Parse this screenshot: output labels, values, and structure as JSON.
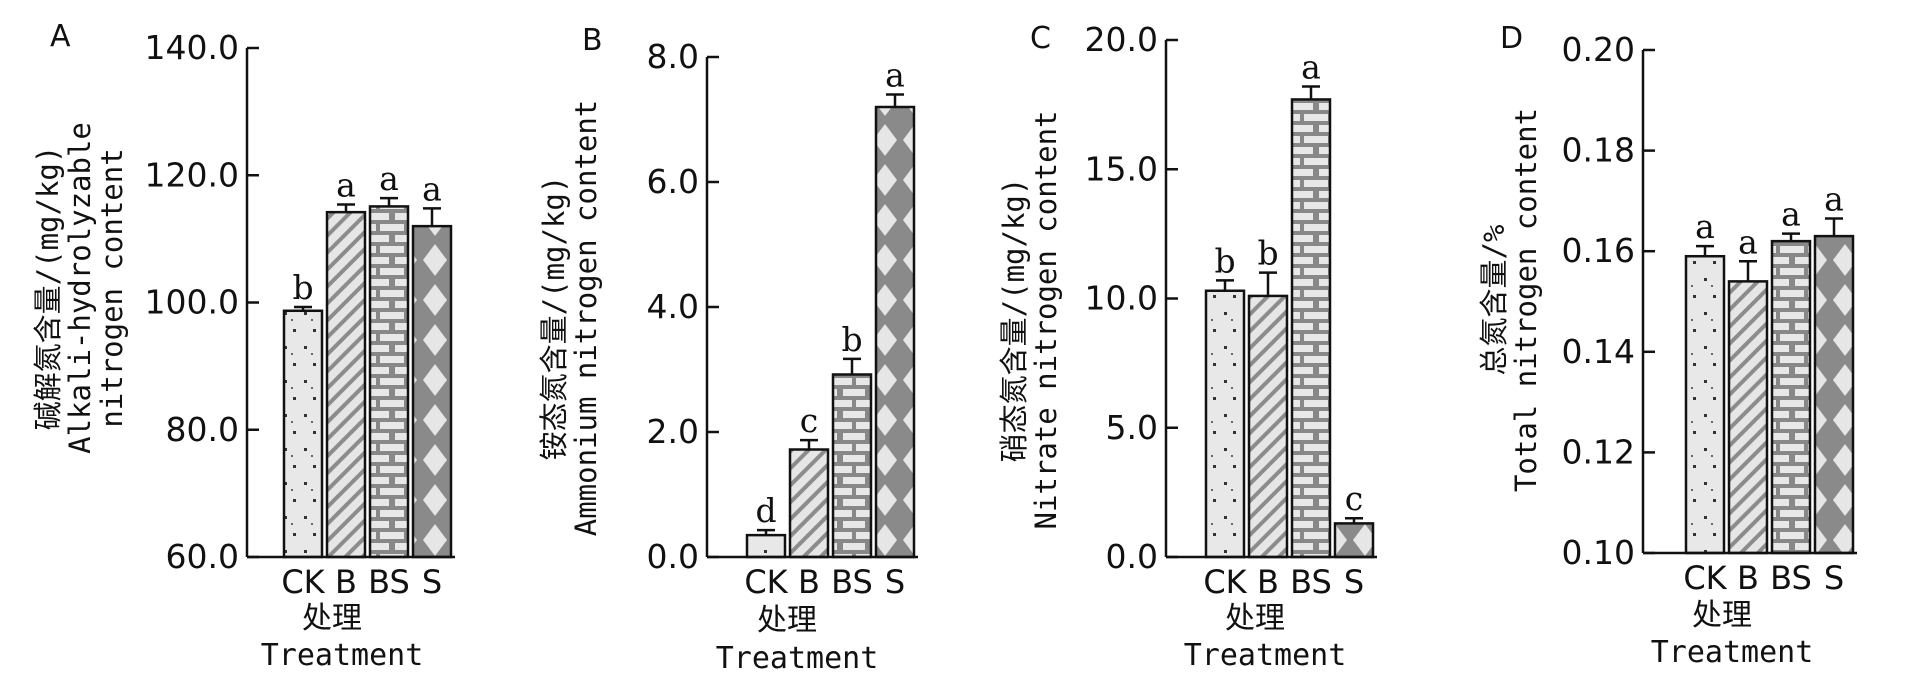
{
  "chart_data": [
    {
      "panel": "A",
      "type": "bar",
      "categories": [
        "CK",
        "B",
        "BS",
        "S"
      ],
      "values": [
        98.7,
        114.2,
        115.1,
        112.0
      ],
      "errors": [
        0.6,
        1.2,
        1.3,
        2.8
      ],
      "letters": [
        "b",
        "a",
        "a",
        "a"
      ],
      "ylim": [
        60.0,
        140.0
      ],
      "yticks": [
        "60.0",
        "80.0",
        "100.0",
        "120.0",
        "140.0"
      ],
      "ytick_values": [
        60,
        80,
        100,
        120,
        140
      ],
      "ylabel_lines": [
        "碱解氮含量/(mg/kg)",
        "Alkali-hydrolyzable",
        "nitrogen content"
      ],
      "xlabel_lines": [
        "处理",
        "Treatment"
      ]
    },
    {
      "panel": "B",
      "type": "bar",
      "categories": [
        "CK",
        "B",
        "BS",
        "S"
      ],
      "values": [
        0.35,
        1.72,
        2.92,
        7.2
      ],
      "errors": [
        0.08,
        0.15,
        0.25,
        0.2
      ],
      "letters": [
        "d",
        "c",
        "b",
        "a"
      ],
      "ylim": [
        0.0,
        8.0
      ],
      "yticks": [
        "0.0",
        "2.0",
        "4.0",
        "6.0",
        "8.0"
      ],
      "ytick_values": [
        0,
        2,
        4,
        6,
        8
      ],
      "ylabel_lines": [
        "铵态氮含量/(mg/kg)",
        "Ammonium nitrogen content"
      ],
      "xlabel_lines": [
        "处理",
        "Treatment"
      ]
    },
    {
      "panel": "C",
      "type": "bar",
      "categories": [
        "CK",
        "B",
        "BS",
        "S"
      ],
      "values": [
        10.3,
        10.1,
        17.7,
        1.3
      ],
      "errors": [
        0.4,
        0.9,
        0.5,
        0.2
      ],
      "letters": [
        "b",
        "b",
        "a",
        "c"
      ],
      "ylim": [
        0.0,
        20.0
      ],
      "yticks": [
        "0.0",
        "5.0",
        "10.0",
        "15.0",
        "20.0"
      ],
      "ytick_values": [
        0,
        5,
        10,
        15,
        20
      ],
      "ylabel_lines": [
        "硝态氮含量/(mg/kg)",
        "Nitrate nitrogen content"
      ],
      "xlabel_lines": [
        "处理",
        "Treatment"
      ]
    },
    {
      "panel": "D",
      "type": "bar",
      "categories": [
        "CK",
        "B",
        "BS",
        "S"
      ],
      "values": [
        0.159,
        0.154,
        0.162,
        0.163
      ],
      "errors": [
        0.002,
        0.004,
        0.0015,
        0.0035
      ],
      "letters": [
        "a",
        "a",
        "a",
        "a"
      ],
      "ylim": [
        0.1,
        0.2
      ],
      "yticks": [
        "0.10",
        "0.12",
        "0.14",
        "0.16",
        "0.18",
        "0.20"
      ],
      "ytick_values": [
        0.1,
        0.12,
        0.14,
        0.16,
        0.18,
        0.2
      ],
      "ylabel_lines": [
        "总氮含量/%",
        "Total nitrogen content"
      ],
      "xlabel_lines": [
        "处理",
        "Treatment"
      ]
    }
  ],
  "colors": {
    "bar_fill": "#e6e6e6",
    "pattern_ink": "#7a7a7a",
    "pattern_dark": "#8c8c8c",
    "axis": "#111111"
  }
}
